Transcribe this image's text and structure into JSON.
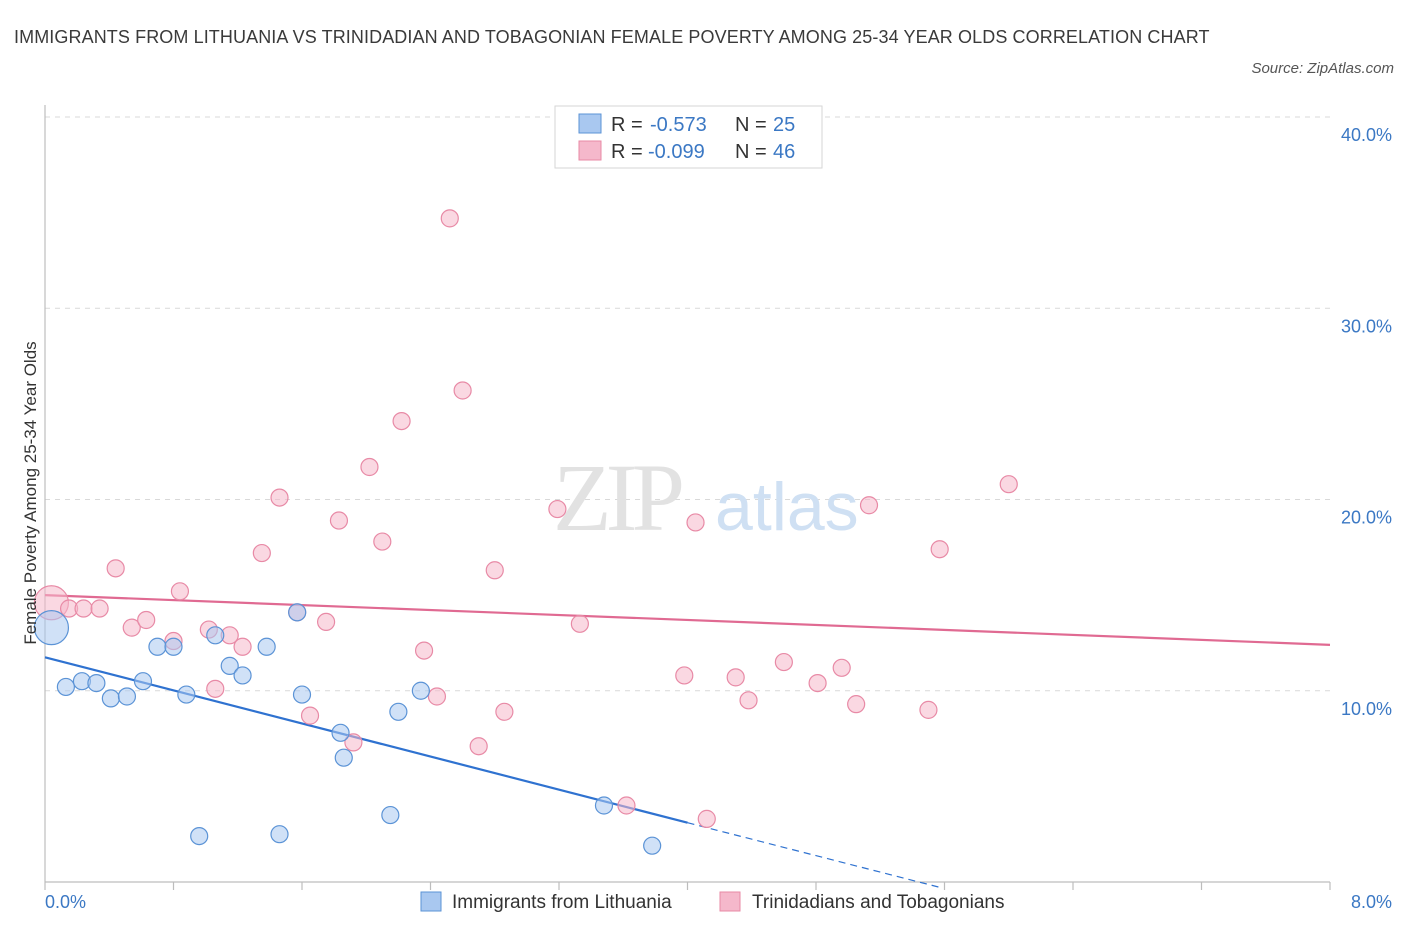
{
  "header": {
    "title": "IMMIGRANTS FROM LITHUANIA VS TRINIDADIAN AND TOBAGONIAN FEMALE POVERTY AMONG 25-34 YEAR OLDS CORRELATION CHART",
    "source": "Source: ZipAtlas.com"
  },
  "watermark": {
    "zip": "ZIP",
    "atlas": "atlas"
  },
  "legend": {
    "rows": [
      {
        "r_label": "R =",
        "r_value": "-0.573",
        "n_label": "N =",
        "n_value": "25",
        "color": "#a9c8f0"
      },
      {
        "r_label": "R =",
        "r_value": "-0.099",
        "n_label": "N =",
        "n_value": "46",
        "color": "#f5b8cb"
      }
    ]
  },
  "colors": {
    "blue_fill": "#a9c8f0",
    "blue_stroke": "#5b93d6",
    "blue_line": "#2f72d0",
    "pink_fill": "#f5b8cb",
    "pink_stroke": "#e88aa6",
    "pink_line": "#e06a92",
    "axis_label": "#3b78c4",
    "grid": "#d9d9d9"
  },
  "chart_data": {
    "type": "scatter",
    "title": "IMMIGRANTS FROM LITHUANIA VS TRINIDADIAN AND TOBAGONIAN FEMALE POVERTY AMONG 25-34 YEAR OLDS CORRELATION CHART",
    "ylabel": "Female Poverty Among 25-34 Year Olds",
    "xlabel": "",
    "xlim": [
      0,
      8
    ],
    "ylim": [
      0,
      40
    ],
    "x_tick_labels": [
      "0.0%",
      "8.0%"
    ],
    "y_ticks": [
      10,
      20,
      30,
      40
    ],
    "y_tick_labels": [
      "10.0%",
      "20.0%",
      "30.0%",
      "40.0%"
    ],
    "grid": true,
    "series": [
      {
        "name": "Immigrants from Lithuania",
        "color": "#a9c8f0",
        "points": [
          [
            0.04,
            13.3
          ],
          [
            0.13,
            10.2
          ],
          [
            0.23,
            10.5
          ],
          [
            0.32,
            10.4
          ],
          [
            0.41,
            9.6
          ],
          [
            0.51,
            9.7
          ],
          [
            0.61,
            10.5
          ],
          [
            0.7,
            12.3
          ],
          [
            0.8,
            12.3
          ],
          [
            0.88,
            9.8
          ],
          [
            0.96,
            2.4
          ],
          [
            1.06,
            12.9
          ],
          [
            1.15,
            11.3
          ],
          [
            1.23,
            10.8
          ],
          [
            1.38,
            12.3
          ],
          [
            1.46,
            2.5
          ],
          [
            1.57,
            14.1
          ],
          [
            1.6,
            9.8
          ],
          [
            1.84,
            7.8
          ],
          [
            1.86,
            6.5
          ],
          [
            2.15,
            3.5
          ],
          [
            2.2,
            8.9
          ],
          [
            2.34,
            10.0
          ],
          [
            3.48,
            4.0
          ],
          [
            3.78,
            1.9
          ]
        ],
        "trend": {
          "x0": 0.0,
          "y0": 11.75,
          "x1": 4.0,
          "y1": 3.1,
          "dash_to_x": 5.58,
          "dash_to_y": -0.3
        }
      },
      {
        "name": "Trinidadians and Tobagonians",
        "color": "#f5b8cb",
        "points": [
          [
            0.04,
            14.6
          ],
          [
            0.15,
            14.3
          ],
          [
            0.24,
            14.3
          ],
          [
            0.34,
            14.3
          ],
          [
            0.44,
            16.4
          ],
          [
            0.54,
            13.3
          ],
          [
            0.63,
            13.7
          ],
          [
            0.8,
            12.6
          ],
          [
            0.84,
            15.2
          ],
          [
            1.02,
            13.2
          ],
          [
            1.06,
            10.1
          ],
          [
            1.15,
            12.9
          ],
          [
            1.23,
            12.3
          ],
          [
            1.35,
            17.2
          ],
          [
            1.46,
            20.1
          ],
          [
            1.57,
            14.1
          ],
          [
            1.65,
            8.7
          ],
          [
            1.75,
            13.6
          ],
          [
            1.83,
            18.9
          ],
          [
            1.92,
            7.3
          ],
          [
            2.02,
            21.7
          ],
          [
            2.1,
            17.8
          ],
          [
            2.22,
            24.1
          ],
          [
            2.36,
            12.1
          ],
          [
            2.44,
            9.7
          ],
          [
            2.52,
            34.7
          ],
          [
            2.6,
            25.7
          ],
          [
            2.7,
            7.1
          ],
          [
            2.8,
            16.3
          ],
          [
            2.86,
            8.9
          ],
          [
            3.19,
            19.5
          ],
          [
            3.33,
            13.5
          ],
          [
            3.62,
            4.0
          ],
          [
            3.98,
            10.8
          ],
          [
            4.05,
            18.8
          ],
          [
            4.12,
            3.3
          ],
          [
            4.3,
            10.7
          ],
          [
            4.38,
            9.5
          ],
          [
            4.6,
            11.5
          ],
          [
            4.81,
            10.4
          ],
          [
            4.96,
            11.2
          ],
          [
            5.05,
            9.3
          ],
          [
            5.13,
            19.7
          ],
          [
            5.5,
            9.0
          ],
          [
            5.57,
            17.4
          ],
          [
            6.0,
            20.8
          ]
        ],
        "trend": {
          "x0": 0.0,
          "y0": 15.0,
          "x1": 8.0,
          "y1": 12.4
        }
      }
    ]
  },
  "bottom_legend": {
    "items": [
      {
        "label": "Immigrants from Lithuania"
      },
      {
        "label": "Trinidadians and Tobagonians"
      }
    ]
  }
}
